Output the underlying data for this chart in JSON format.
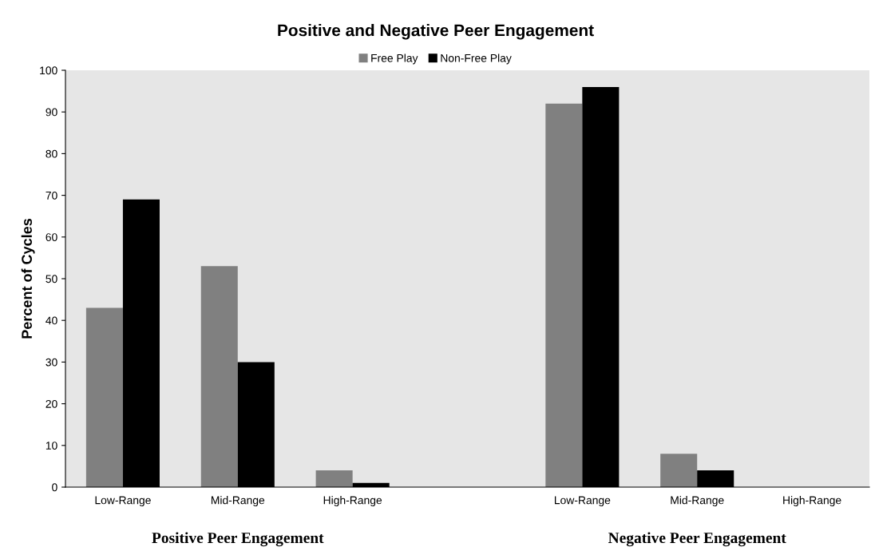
{
  "chart_data": {
    "type": "bar",
    "title": "Positive and Negative Peer Engagement",
    "ylabel": "Percent of Cycles",
    "categories": [
      "Low-Range",
      "Mid-Range",
      "High-Range",
      null,
      "Low-Range",
      "Mid-Range",
      "High-Range"
    ],
    "series": [
      {
        "name": "Free Play",
        "color": "#808080",
        "values": [
          43,
          53,
          4,
          null,
          92,
          8,
          0
        ]
      },
      {
        "name": "Non-Free Play",
        "color": "#000000",
        "values": [
          69,
          30,
          1,
          null,
          96,
          4,
          0
        ]
      }
    ],
    "ylim": [
      0,
      100
    ],
    "yticks": [
      0,
      10,
      20,
      30,
      40,
      50,
      60,
      70,
      80,
      90,
      100
    ],
    "grid": false,
    "legend": "top",
    "annotations": [
      "Positive Peer Engagement",
      "Negative Peer Engagement"
    ]
  }
}
